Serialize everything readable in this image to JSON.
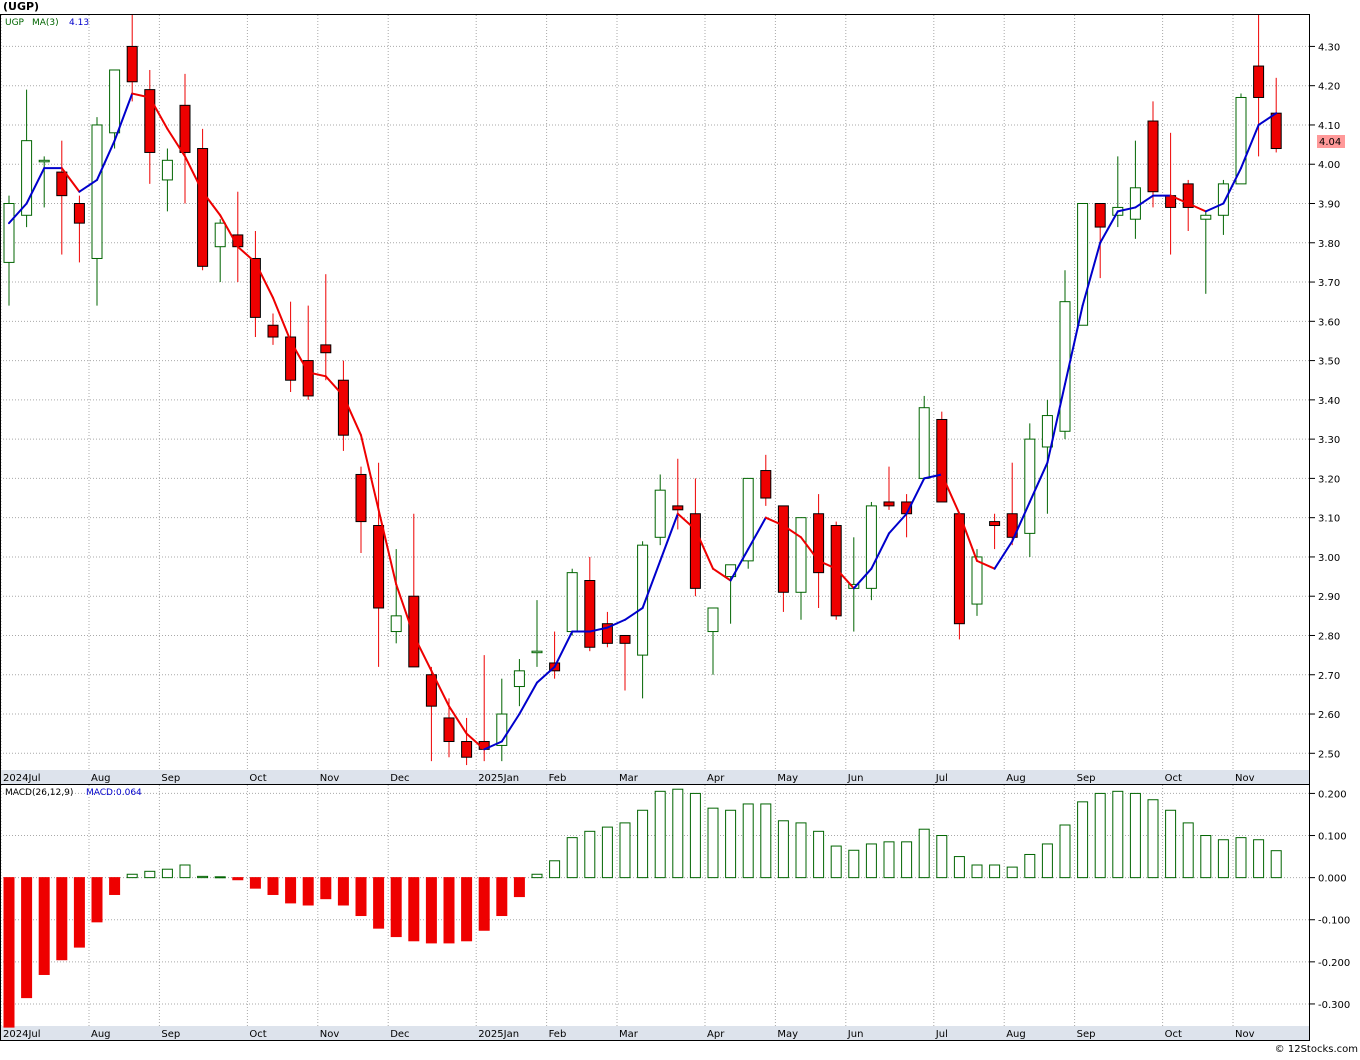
{
  "header": {
    "symbol": "(UGP)",
    "credit": "© 12Stocks.com"
  },
  "price_panel": {
    "legend_symbol": "UGP",
    "legend_ma": "MA(3)",
    "legend_ma_value": "4.13",
    "last_price_label": "4.04"
  },
  "macd_panel": {
    "legend_params": "MACD(26,12,9)",
    "legend_value": "MACD:0.064"
  },
  "colors": {
    "up": "#006400",
    "down": "#ee0000",
    "ma_up": "#0000cc",
    "ma_down": "#ee0000",
    "grid": "#a9a9a9",
    "axis_band": "#dde3ec",
    "last_price_badge": "#ff9999"
  },
  "chart_data": [
    {
      "type": "candlestick",
      "title": "(UGP)",
      "ylim": [
        2.46,
        4.38
      ],
      "yticks": [
        2.5,
        2.6,
        2.7,
        2.8,
        2.9,
        3.0,
        3.1,
        3.2,
        3.3,
        3.4,
        3.5,
        3.6,
        3.7,
        3.8,
        3.9,
        4.0,
        4.1,
        4.2,
        4.3
      ],
      "ytick_labels": [
        "2.50",
        "2.60",
        "2.70",
        "2.80",
        "2.90",
        "3.00",
        "3.10",
        "3.20",
        "3.30",
        "3.40",
        "3.50",
        "3.60",
        "3.70",
        "3.80",
        "3.90",
        "4.00",
        "4.10",
        "4.20",
        "4.30"
      ],
      "grid": true,
      "x_labels": [
        {
          "label": "2024Jul",
          "index": 0
        },
        {
          "label": "Aug",
          "index": 5
        },
        {
          "label": "Sep",
          "index": 9
        },
        {
          "label": "Oct",
          "index": 14
        },
        {
          "label": "Nov",
          "index": 18
        },
        {
          "label": "Dec",
          "index": 22
        },
        {
          "label": "2025Jan",
          "index": 27
        },
        {
          "label": "Feb",
          "index": 31
        },
        {
          "label": "Mar",
          "index": 35
        },
        {
          "label": "Apr",
          "index": 40
        },
        {
          "label": "May",
          "index": 44
        },
        {
          "label": "Jun",
          "index": 48
        },
        {
          "label": "Jul",
          "index": 53
        },
        {
          "label": "Aug",
          "index": 57
        },
        {
          "label": "Sep",
          "index": 61
        },
        {
          "label": "Oct",
          "index": 66
        },
        {
          "label": "Nov",
          "index": 70
        }
      ],
      "candles": [
        {
          "o": 3.75,
          "h": 3.92,
          "l": 3.64,
          "c": 3.9
        },
        {
          "o": 3.87,
          "h": 4.19,
          "l": 3.84,
          "c": 4.06
        },
        {
          "o": 4.01,
          "h": 4.02,
          "l": 3.89,
          "c": 4.01
        },
        {
          "o": 3.98,
          "h": 4.06,
          "l": 3.77,
          "c": 3.92
        },
        {
          "o": 3.9,
          "h": 3.92,
          "l": 3.75,
          "c": 3.85
        },
        {
          "o": 3.76,
          "h": 4.12,
          "l": 3.64,
          "c": 4.1
        },
        {
          "o": 4.08,
          "h": 4.23,
          "l": 4.04,
          "c": 4.24
        },
        {
          "o": 4.3,
          "h": 4.38,
          "l": 4.16,
          "c": 4.21
        },
        {
          "o": 4.19,
          "h": 4.24,
          "l": 3.95,
          "c": 4.03
        },
        {
          "o": 3.96,
          "h": 4.04,
          "l": 3.88,
          "c": 4.01
        },
        {
          "o": 4.15,
          "h": 4.23,
          "l": 3.9,
          "c": 4.03
        },
        {
          "o": 4.04,
          "h": 4.09,
          "l": 3.73,
          "c": 3.74
        },
        {
          "o": 3.79,
          "h": 3.86,
          "l": 3.7,
          "c": 3.85
        },
        {
          "o": 3.82,
          "h": 3.93,
          "l": 3.7,
          "c": 3.79
        },
        {
          "o": 3.76,
          "h": 3.83,
          "l": 3.56,
          "c": 3.61
        },
        {
          "o": 3.59,
          "h": 3.62,
          "l": 3.54,
          "c": 3.56
        },
        {
          "o": 3.56,
          "h": 3.65,
          "l": 3.42,
          "c": 3.45
        },
        {
          "o": 3.5,
          "h": 3.64,
          "l": 3.4,
          "c": 3.41
        },
        {
          "o": 3.54,
          "h": 3.72,
          "l": 3.45,
          "c": 3.52
        },
        {
          "o": 3.45,
          "h": 3.5,
          "l": 3.27,
          "c": 3.31
        },
        {
          "o": 3.21,
          "h": 3.23,
          "l": 3.01,
          "c": 3.09
        },
        {
          "o": 3.08,
          "h": 3.24,
          "l": 2.72,
          "c": 2.87
        },
        {
          "o": 2.81,
          "h": 3.02,
          "l": 2.78,
          "c": 2.85
        },
        {
          "o": 2.9,
          "h": 3.11,
          "l": 2.72,
          "c": 2.72
        },
        {
          "o": 2.7,
          "h": 2.72,
          "l": 2.48,
          "c": 2.62
        },
        {
          "o": 2.59,
          "h": 2.64,
          "l": 2.49,
          "c": 2.53
        },
        {
          "o": 2.53,
          "h": 2.59,
          "l": 2.47,
          "c": 2.49
        },
        {
          "o": 2.53,
          "h": 2.75,
          "l": 2.48,
          "c": 2.51
        },
        {
          "o": 2.52,
          "h": 2.69,
          "l": 2.48,
          "c": 2.6
        },
        {
          "o": 2.67,
          "h": 2.74,
          "l": 2.62,
          "c": 2.71
        },
        {
          "o": 2.76,
          "h": 2.89,
          "l": 2.72,
          "c": 2.76
        },
        {
          "o": 2.73,
          "h": 2.81,
          "l": 2.69,
          "c": 2.71
        },
        {
          "o": 2.81,
          "h": 2.97,
          "l": 2.8,
          "c": 2.96
        },
        {
          "o": 2.94,
          "h": 3.0,
          "l": 2.76,
          "c": 2.77
        },
        {
          "o": 2.83,
          "h": 2.86,
          "l": 2.77,
          "c": 2.78
        },
        {
          "o": 2.8,
          "h": 2.8,
          "l": 2.66,
          "c": 2.78
        },
        {
          "o": 2.75,
          "h": 3.04,
          "l": 2.64,
          "c": 3.03
        },
        {
          "o": 3.05,
          "h": 3.21,
          "l": 3.03,
          "c": 3.17
        },
        {
          "o": 3.13,
          "h": 3.25,
          "l": 3.07,
          "c": 3.12
        },
        {
          "o": 3.11,
          "h": 3.2,
          "l": 2.9,
          "c": 2.92
        },
        {
          "o": 2.81,
          "h": 2.87,
          "l": 2.7,
          "c": 2.87
        },
        {
          "o": 2.95,
          "h": 2.98,
          "l": 2.83,
          "c": 2.98
        },
        {
          "o": 2.99,
          "h": 3.2,
          "l": 2.97,
          "c": 3.2
        },
        {
          "o": 3.22,
          "h": 3.26,
          "l": 3.13,
          "c": 3.15
        },
        {
          "o": 3.13,
          "h": 3.13,
          "l": 2.86,
          "c": 2.91
        },
        {
          "o": 2.91,
          "h": 3.1,
          "l": 2.84,
          "c": 3.1
        },
        {
          "o": 3.11,
          "h": 3.16,
          "l": 2.87,
          "c": 2.96
        },
        {
          "o": 3.08,
          "h": 3.09,
          "l": 2.84,
          "c": 2.85
        },
        {
          "o": 2.92,
          "h": 3.05,
          "l": 2.81,
          "c": 2.93
        },
        {
          "o": 2.92,
          "h": 3.14,
          "l": 2.89,
          "c": 3.13
        },
        {
          "o": 3.14,
          "h": 3.23,
          "l": 3.12,
          "c": 3.13
        },
        {
          "o": 3.14,
          "h": 3.16,
          "l": 3.05,
          "c": 3.11
        },
        {
          "o": 3.2,
          "h": 3.41,
          "l": 3.2,
          "c": 3.38
        },
        {
          "o": 3.35,
          "h": 3.37,
          "l": 3.14,
          "c": 3.14
        },
        {
          "o": 3.11,
          "h": 3.11,
          "l": 2.79,
          "c": 2.83
        },
        {
          "o": 2.88,
          "h": 3.02,
          "l": 2.85,
          "c": 3.0
        },
        {
          "o": 3.09,
          "h": 3.11,
          "l": 3.02,
          "c": 3.08
        },
        {
          "o": 3.11,
          "h": 3.24,
          "l": 3.03,
          "c": 3.05
        },
        {
          "o": 3.06,
          "h": 3.34,
          "l": 3.0,
          "c": 3.3
        },
        {
          "o": 3.28,
          "h": 3.4,
          "l": 3.11,
          "c": 3.36
        },
        {
          "o": 3.32,
          "h": 3.73,
          "l": 3.3,
          "c": 3.65
        },
        {
          "o": 3.59,
          "h": 3.9,
          "l": 3.59,
          "c": 3.9
        },
        {
          "o": 3.9,
          "h": 3.9,
          "l": 3.71,
          "c": 3.84
        },
        {
          "o": 3.87,
          "h": 4.02,
          "l": 3.84,
          "c": 3.89
        },
        {
          "o": 3.86,
          "h": 4.06,
          "l": 3.81,
          "c": 3.94
        },
        {
          "o": 4.11,
          "h": 4.16,
          "l": 3.89,
          "c": 3.93
        },
        {
          "o": 3.92,
          "h": 4.08,
          "l": 3.77,
          "c": 3.89
        },
        {
          "o": 3.95,
          "h": 3.96,
          "l": 3.83,
          "c": 3.89
        },
        {
          "o": 3.86,
          "h": 3.88,
          "l": 3.67,
          "c": 3.87
        },
        {
          "o": 3.87,
          "h": 3.96,
          "l": 3.82,
          "c": 3.95
        },
        {
          "o": 3.95,
          "h": 4.18,
          "l": 3.95,
          "c": 4.17
        },
        {
          "o": 4.25,
          "h": 4.38,
          "l": 4.02,
          "c": 4.17
        },
        {
          "o": 4.13,
          "h": 4.22,
          "l": 4.03,
          "c": 4.04
        }
      ],
      "ma3": [
        3.85,
        3.9,
        3.99,
        3.99,
        3.93,
        3.96,
        4.06,
        4.18,
        4.17,
        4.09,
        4.02,
        3.93,
        3.87,
        3.79,
        3.75,
        3.66,
        3.55,
        3.47,
        3.46,
        3.41,
        3.31,
        3.12,
        2.93,
        2.8,
        2.71,
        2.62,
        2.55,
        2.51,
        2.53,
        2.6,
        2.68,
        2.72,
        2.81,
        2.81,
        2.82,
        2.84,
        2.87,
        2.99,
        3.11,
        3.07,
        2.97,
        2.94,
        3.02,
        3.1,
        3.08,
        3.05,
        2.99,
        2.97,
        2.92,
        2.97,
        3.06,
        3.11,
        3.2,
        3.21,
        3.11,
        2.99,
        2.97,
        3.04,
        3.14,
        3.24,
        3.44,
        3.64,
        3.8,
        3.88,
        3.89,
        3.92,
        3.92,
        3.9,
        3.88,
        3.9,
        3.99,
        4.1,
        4.13
      ]
    },
    {
      "type": "bar",
      "title": "MACD(26,12,9)",
      "ylim": [
        -0.35,
        0.22
      ],
      "yticks": [
        -0.3,
        -0.2,
        -0.1,
        0.0,
        0.1,
        0.2
      ],
      "ytick_labels": [
        "-0.300",
        "-0.200",
        "-0.100",
        "0.000",
        "0.100",
        "0.200"
      ],
      "grid": true,
      "values": [
        -0.355,
        -0.285,
        -0.23,
        -0.195,
        -0.165,
        -0.105,
        -0.04,
        0.008,
        0.015,
        0.02,
        0.03,
        0.003,
        0.002,
        -0.005,
        -0.025,
        -0.04,
        -0.06,
        -0.065,
        -0.05,
        -0.065,
        -0.09,
        -0.12,
        -0.14,
        -0.15,
        -0.155,
        -0.155,
        -0.15,
        -0.125,
        -0.09,
        -0.045,
        0.008,
        0.04,
        0.095,
        0.11,
        0.12,
        0.13,
        0.16,
        0.205,
        0.21,
        0.2,
        0.165,
        0.16,
        0.175,
        0.175,
        0.135,
        0.13,
        0.11,
        0.075,
        0.065,
        0.08,
        0.085,
        0.085,
        0.115,
        0.1,
        0.05,
        0.03,
        0.03,
        0.025,
        0.055,
        0.08,
        0.125,
        0.18,
        0.2,
        0.205,
        0.2,
        0.185,
        0.16,
        0.13,
        0.1,
        0.09,
        0.095,
        0.09,
        0.064
      ]
    }
  ]
}
